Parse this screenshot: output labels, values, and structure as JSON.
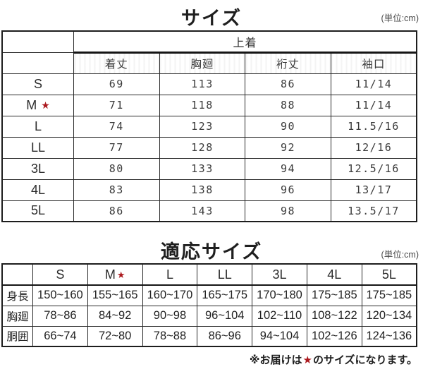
{
  "colors": {
    "star_red": "#ab181d",
    "border": "#1d1d1d",
    "text": "#2e2e2e"
  },
  "size_table": {
    "title": "サイズ",
    "unit": "(単位:cm)",
    "group_header": "上着",
    "columns": [
      "着丈",
      "胸廻",
      "裄丈",
      "袖口"
    ],
    "star_glyph": "★",
    "rows": [
      {
        "label": "S",
        "starred": false,
        "values": [
          "69",
          "113",
          "86",
          "11/14"
        ]
      },
      {
        "label": "M",
        "starred": true,
        "values": [
          "71",
          "118",
          "88",
          "11/14"
        ]
      },
      {
        "label": "L",
        "starred": false,
        "values": [
          "74",
          "123",
          "90",
          "11.5/16"
        ]
      },
      {
        "label": "LL",
        "starred": false,
        "values": [
          "77",
          "128",
          "92",
          "12/16"
        ]
      },
      {
        "label": "3L",
        "starred": false,
        "values": [
          "80",
          "133",
          "94",
          "12.5/16"
        ]
      },
      {
        "label": "4L",
        "starred": false,
        "values": [
          "83",
          "138",
          "96",
          "13/17"
        ]
      },
      {
        "label": "5L",
        "starred": false,
        "values": [
          "86",
          "143",
          "98",
          "13.5/17"
        ]
      }
    ]
  },
  "fit_table": {
    "title": "適応サイズ",
    "unit": "(単位:cm)",
    "star_glyph": "★",
    "columns": [
      {
        "label": "S",
        "starred": false
      },
      {
        "label": "M",
        "starred": true
      },
      {
        "label": "L",
        "starred": false
      },
      {
        "label": "LL",
        "starred": false
      },
      {
        "label": "3L",
        "starred": false
      },
      {
        "label": "4L",
        "starred": false
      },
      {
        "label": "5L",
        "starred": false
      }
    ],
    "rows": [
      {
        "label": "身長",
        "values": [
          "150~160",
          "155~165",
          "160~170",
          "165~175",
          "170~180",
          "175~185",
          "175~185"
        ]
      },
      {
        "label": "胸廻",
        "values": [
          "78~86",
          "84~92",
          "90~98",
          "96~104",
          "102~110",
          "108~122",
          "120~134"
        ]
      },
      {
        "label": "胴囲",
        "values": [
          "66~74",
          "72~80",
          "78~88",
          "86~96",
          "94~104",
          "102~126",
          "124~136"
        ]
      }
    ]
  },
  "note": {
    "prefix": "※お届けは",
    "star": "★",
    "suffix": "のサイズになります。"
  }
}
